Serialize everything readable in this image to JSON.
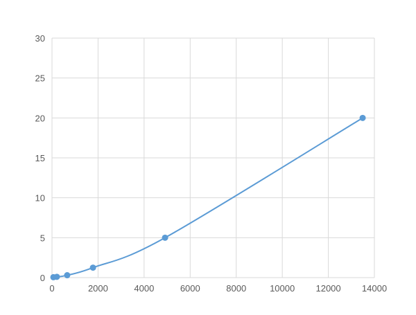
{
  "chart_data": {
    "type": "scatter",
    "title": "",
    "xlabel": "",
    "ylabel": "",
    "xlim": [
      0,
      14000
    ],
    "ylim": [
      0,
      30
    ],
    "xticks": [
      0,
      2000,
      4000,
      6000,
      8000,
      10000,
      12000,
      14000
    ],
    "yticks": [
      0,
      5,
      10,
      15,
      20,
      25,
      30
    ],
    "grid": true,
    "legend": "none",
    "smooth_line": true,
    "color": "#5b9bd5",
    "series": [
      {
        "x": [
          60,
          210,
          660,
          1780,
          4910,
          13490
        ],
        "y": [
          0.05,
          0.1,
          0.3,
          1.25,
          5,
          20
        ]
      }
    ]
  }
}
